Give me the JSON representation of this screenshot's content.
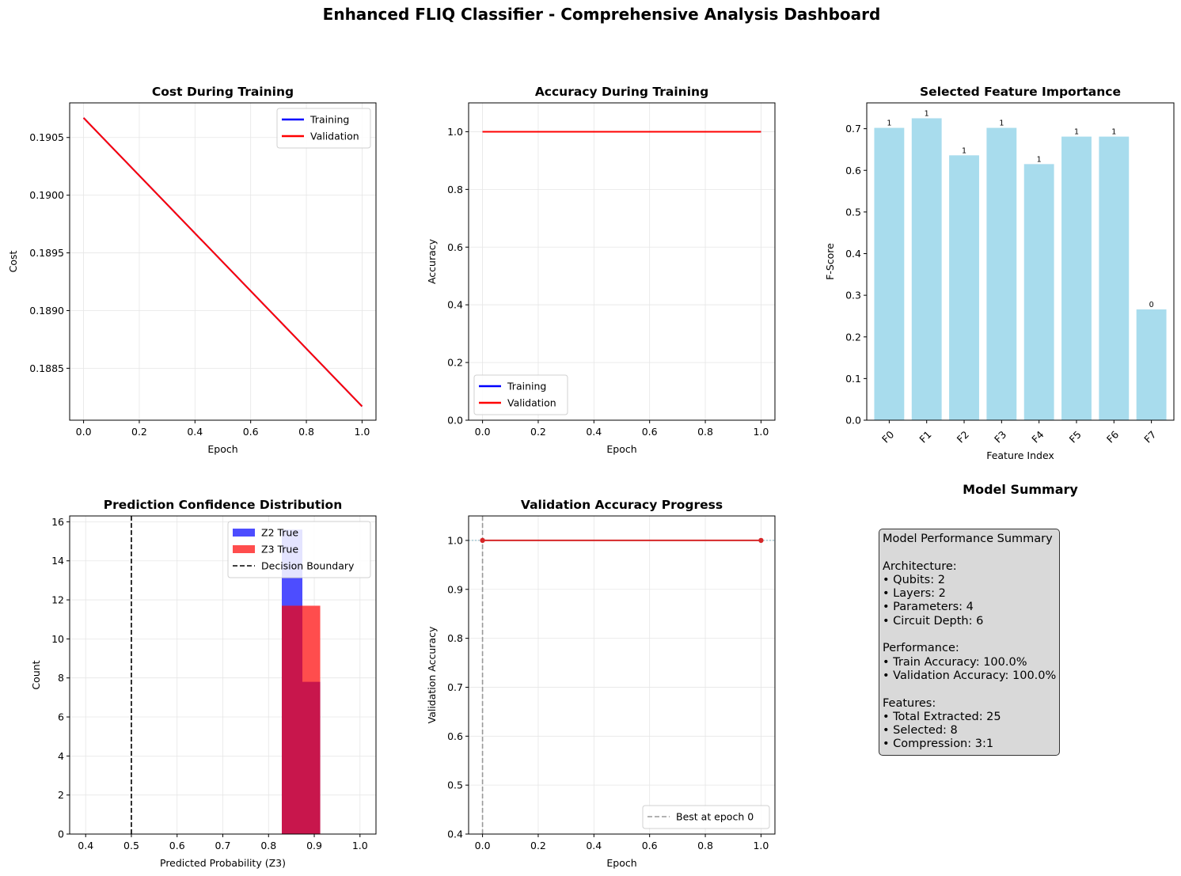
{
  "suptitle": "Enhanced FLIQ Classifier - Comprehensive Analysis Dashboard",
  "colors": {
    "training": "#0000ff",
    "validation": "#ff0000",
    "bar": "#a8dced",
    "hist_z2": "#4d4dff",
    "hist_z3": "#ff4d4d",
    "hist_overlap": "#c8164c",
    "grid": "#e6e6e6",
    "summary_bg": "#d9d9d9"
  },
  "chart_data": [
    {
      "id": "cost",
      "type": "line",
      "title": "Cost During Training",
      "xlabel": "Epoch",
      "ylabel": "Cost",
      "xlim": [
        -0.05,
        1.05
      ],
      "ylim": [
        0.18805,
        0.1908
      ],
      "xticks": [
        0.0,
        0.2,
        0.4,
        0.6,
        0.8,
        1.0
      ],
      "xtick_labels": [
        "0.0",
        "0.2",
        "0.4",
        "0.6",
        "0.8",
        "1.0"
      ],
      "yticks": [
        0.1885,
        0.189,
        0.1895,
        0.19,
        0.1905
      ],
      "ytick_labels": [
        "0.1885",
        "0.1890",
        "0.1895",
        "0.1900",
        "0.1905"
      ],
      "grid": true,
      "legend_position": "upper-right",
      "series": [
        {
          "name": "Training",
          "color": "#0000ff",
          "x": [
            0,
            1
          ],
          "y": [
            0.19067,
            0.18817
          ]
        },
        {
          "name": "Validation",
          "color": "#ff0000",
          "x": [
            0,
            1
          ],
          "y": [
            0.19067,
            0.18817
          ]
        }
      ]
    },
    {
      "id": "accuracy",
      "type": "line",
      "title": "Accuracy During Training",
      "xlabel": "Epoch",
      "ylabel": "Accuracy",
      "xlim": [
        -0.05,
        1.05
      ],
      "ylim": [
        0.0,
        1.1
      ],
      "xticks": [
        0.0,
        0.2,
        0.4,
        0.6,
        0.8,
        1.0
      ],
      "xtick_labels": [
        "0.0",
        "0.2",
        "0.4",
        "0.6",
        "0.8",
        "1.0"
      ],
      "yticks": [
        0.0,
        0.2,
        0.4,
        0.6,
        0.8,
        1.0
      ],
      "ytick_labels": [
        "0.0",
        "0.2",
        "0.4",
        "0.6",
        "0.8",
        "1.0"
      ],
      "grid": true,
      "legend_position": "lower-left",
      "series": [
        {
          "name": "Training",
          "color": "#0000ff",
          "x": [
            0,
            1
          ],
          "y": [
            1.0,
            1.0
          ]
        },
        {
          "name": "Validation",
          "color": "#ff0000",
          "x": [
            0,
            1
          ],
          "y": [
            1.0,
            1.0
          ]
        }
      ]
    },
    {
      "id": "features",
      "type": "bar",
      "title": "Selected Feature Importance",
      "xlabel": "Feature Index",
      "ylabel": "F-Score",
      "categories": [
        "F0",
        "F1",
        "F2",
        "F3",
        "F4",
        "F5",
        "F6",
        "F7"
      ],
      "values": [
        0.702,
        0.725,
        0.636,
        0.702,
        0.615,
        0.681,
        0.681,
        0.266
      ],
      "bar_labels": [
        "1",
        "1",
        "1",
        "1",
        "1",
        "1",
        "1",
        "0"
      ],
      "ylim": [
        0.0,
        0.762
      ],
      "yticks": [
        0.0,
        0.1,
        0.2,
        0.3,
        0.4,
        0.5,
        0.6,
        0.7
      ],
      "ytick_labels": [
        "0.0",
        "0.1",
        "0.2",
        "0.3",
        "0.4",
        "0.5",
        "0.6",
        "0.7"
      ],
      "grid": false
    },
    {
      "id": "confidence",
      "type": "histogram",
      "title": "Prediction Confidence Distribution",
      "xlabel": "Predicted Probability (Z3)",
      "ylabel": "Count",
      "xlim": [
        0.365,
        1.035
      ],
      "ylim": [
        0,
        16.3
      ],
      "xticks": [
        0.4,
        0.5,
        0.6,
        0.7,
        0.8,
        0.9,
        1.0
      ],
      "xtick_labels": [
        "0.4",
        "0.5",
        "0.6",
        "0.7",
        "0.8",
        "0.9",
        "1.0"
      ],
      "yticks": [
        0,
        2,
        4,
        6,
        8,
        10,
        12,
        14,
        16
      ],
      "ytick_labels": [
        "0",
        "2",
        "4",
        "6",
        "8",
        "10",
        "12",
        "14",
        "16"
      ],
      "grid": true,
      "legend_position": "upper-right",
      "series": [
        {
          "name": "Z2 True",
          "color": "#4d4dff",
          "bins": [
            [
              0.829,
              0.874,
              15.6
            ],
            [
              0.874,
              0.913,
              7.8
            ]
          ]
        },
        {
          "name": "Z3 True",
          "color": "#ff4d4d",
          "bins": [
            [
              0.829,
              0.874,
              11.7
            ],
            [
              0.874,
              0.913,
              11.7
            ]
          ]
        }
      ],
      "vline": {
        "name": "Decision Boundary",
        "x": 0.5,
        "color": "#000000"
      }
    },
    {
      "id": "val_progress",
      "type": "line",
      "title": "Validation Accuracy Progress",
      "xlabel": "Epoch",
      "ylabel": "Validation Accuracy",
      "xlim": [
        -0.05,
        1.05
      ],
      "ylim": [
        0.4,
        1.05
      ],
      "xticks": [
        0.0,
        0.2,
        0.4,
        0.6,
        0.8,
        1.0
      ],
      "xtick_labels": [
        "0.0",
        "0.2",
        "0.4",
        "0.6",
        "0.8",
        "1.0"
      ],
      "yticks": [
        0.4,
        0.5,
        0.6,
        0.7,
        0.8,
        0.9,
        1.0
      ],
      "ytick_labels": [
        "0.4",
        "0.5",
        "0.6",
        "0.7",
        "0.8",
        "0.9",
        "1.0"
      ],
      "grid": true,
      "legend_position": "lower-right",
      "series": [
        {
          "name": "",
          "color": "#d62728",
          "x": [
            0,
            1
          ],
          "y": [
            1.0,
            1.0
          ],
          "markers": true
        }
      ],
      "vline": {
        "name": "Best at epoch 0",
        "x": 0,
        "color": "#999999"
      },
      "hline": {
        "y": 1.0,
        "color": "#7fb5c4"
      }
    }
  ],
  "summary": {
    "title": "Model Summary",
    "lines": [
      "Model Performance Summary",
      "",
      "Architecture:",
      "• Qubits: 2",
      "• Layers: 2",
      "• Parameters: 4",
      "• Circuit Depth: 6",
      "",
      "Performance:",
      "• Train Accuracy: 100.0%",
      "• Validation Accuracy: 100.0%",
      "",
      "Features:",
      "• Total Extracted: 25",
      "• Selected: 8",
      "• Compression: 3:1"
    ]
  }
}
